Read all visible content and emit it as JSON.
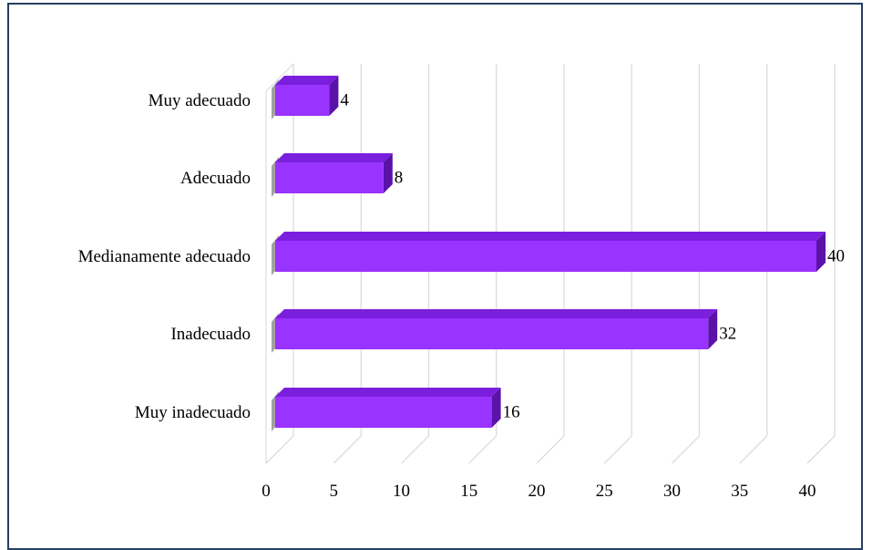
{
  "chart_data": {
    "type": "bar",
    "orientation": "horizontal",
    "style": "3d",
    "title": "",
    "xlabel": "",
    "ylabel": "",
    "categories": [
      "Muy adecuado",
      "Adecuado",
      "Medianamente adecuado",
      "Inadecuado",
      "Muy inadecuado"
    ],
    "values": [
      4,
      8,
      40,
      32,
      16
    ],
    "data_labels": [
      "4",
      "8",
      "40",
      "32",
      "16"
    ],
    "xlim": [
      0,
      40
    ],
    "x_ticks": [
      "0",
      "5",
      "10",
      "15",
      "20",
      "25",
      "30",
      "35",
      "40"
    ],
    "grid": true,
    "legend": "none",
    "colors": {
      "bar_front": "#9933ff",
      "bar_top": "#7a1fdd",
      "bar_side": "#5a12a8",
      "grid": "#d9d9d9",
      "frame_border": "#243f60"
    }
  }
}
